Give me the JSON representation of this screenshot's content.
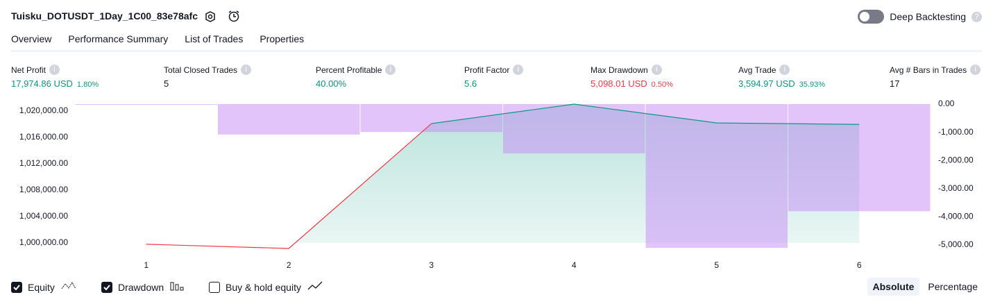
{
  "header": {
    "title": "Tuisku_DOTUSDT_1Day_1C00_83e78afc",
    "deep_backtesting": "Deep Backtesting"
  },
  "tabs": [
    "Overview",
    "Performance Summary",
    "List of Trades",
    "Properties"
  ],
  "metrics": [
    {
      "label": "Net Profit",
      "value": "17,974.86 USD",
      "percent": "1.80%",
      "color": "#089981"
    },
    {
      "label": "Total Closed Trades",
      "value": "5",
      "color": "#131722"
    },
    {
      "label": "Percent Profitable",
      "value": "40.00%",
      "color": "#089981"
    },
    {
      "label": "Profit Factor",
      "value": "5.6",
      "color": "#089981"
    },
    {
      "label": "Max Drawdown",
      "value": "5,098.01 USD",
      "percent": "0.50%",
      "color": "#f23645"
    },
    {
      "label": "Avg Trade",
      "value": "3,594.97 USD",
      "percent": "35.93%",
      "color": "#089981"
    },
    {
      "label": "Avg # Bars in Trades",
      "value": "17",
      "color": "#131722"
    }
  ],
  "chart_data": {
    "type": "line",
    "categories": [
      "1",
      "2",
      "3",
      "4",
      "5",
      "6"
    ],
    "series": [
      {
        "name": "Equity",
        "color": "#089981",
        "below_color": "#f23645",
        "axis": "y",
        "values": [
          999800,
          999160,
          1018100,
          1021050,
          1018200,
          1017975
        ]
      },
      {
        "name": "Drawdown",
        "color": "#c58af5",
        "type": "bar",
        "axis": "y2",
        "values": [
          0,
          -1080,
          -990,
          -1750,
          -5098.01,
          -3800
        ]
      }
    ],
    "ylim": [
      998947,
      1021053
    ],
    "yticks": [
      {
        "value": 1000000,
        "label": "1,000,000.00"
      },
      {
        "value": 1004000,
        "label": "1,004,000.00"
      },
      {
        "value": 1008000,
        "label": "1,008,000.00"
      },
      {
        "value": 1012000,
        "label": "1,012,000.00"
      },
      {
        "value": 1016000,
        "label": "1,016,000.00"
      },
      {
        "value": 1020000,
        "label": "1,020,000.00"
      }
    ],
    "y2lim": [
      -5172,
      0
    ],
    "y2ticks": [
      {
        "value": 0,
        "label": "0.00"
      },
      {
        "value": -1000,
        "label": "-1,000.00"
      },
      {
        "value": -2000,
        "label": "-2,000.00"
      },
      {
        "value": -3000,
        "label": "-3,000.00"
      },
      {
        "value": -4000,
        "label": "-4,000.00"
      },
      {
        "value": -5000,
        "label": "-5,000.00"
      }
    ]
  },
  "controls": {
    "buy_hold": "Buy & hold equity",
    "modes": [
      "Absolute",
      "Percentage"
    ]
  }
}
